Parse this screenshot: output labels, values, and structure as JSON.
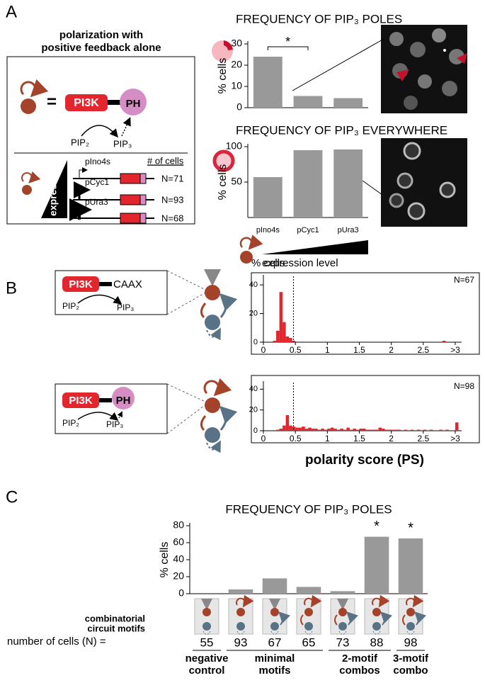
{
  "panel_labels": [
    "A",
    "B",
    "C"
  ],
  "diagram_a": {
    "title": [
      "polarization with",
      "positive feedback alone"
    ],
    "enzyme": "PI3K",
    "domain": "PH",
    "substrate": "PIP₂",
    "product": "PIP₃",
    "gradient": "expression",
    "count_header": "# of cells",
    "constructs": [
      {
        "promoter": "pIno4s",
        "n": "N=71"
      },
      {
        "promoter": "pCyc1",
        "n": "N=93"
      },
      {
        "promoter": "pUra3",
        "n": "N=68"
      }
    ]
  },
  "diagram_b": [
    {
      "enzyme": "PI3K",
      "tag": "CAAX",
      "substrate": "PIP₂",
      "product": "PIP₃"
    },
    {
      "enzyme": "PI3K",
      "tag": "PH",
      "substrate": "PIP₂",
      "product": "PIP₃"
    }
  ],
  "chart_data": [
    {
      "type": "bar",
      "title": "FREQUENCY OF PIP₃ POLES",
      "ylabel": "% cells",
      "categories": [
        null,
        null,
        null
      ],
      "values": [
        24,
        5.5,
        4.5
      ],
      "color": "#999999",
      "ylim": [
        0,
        30
      ],
      "yticks": [
        0,
        10,
        20,
        30
      ],
      "significance": "*"
    },
    {
      "type": "bar",
      "title": "FREQUENCY OF PIP₃ EVERYWHERE",
      "ylabel": "% cells",
      "xlabel": "expression level",
      "categories": [
        "pIno4s",
        "pCyc1",
        "pUra3"
      ],
      "values": [
        57,
        95,
        96
      ],
      "color": "#999999",
      "ylim": [
        0,
        100
      ],
      "yticks": [
        50,
        100
      ]
    },
    {
      "type": "histogram",
      "ylabel": "% cells",
      "annotation": "N=67",
      "threshold": 0.47,
      "color": "#e3262e",
      "bins": [
        0,
        0.05,
        0.1,
        0.15,
        0.2,
        0.25,
        0.3,
        0.35,
        0.4,
        0.45,
        0.5,
        0.55,
        0.6,
        0.65,
        0.7,
        0.75,
        0.8,
        0.85,
        0.9,
        0.95,
        1,
        1.05,
        1.1,
        1.15,
        1.2,
        1.25,
        1.3,
        1.35,
        1.4,
        1.45,
        1.5,
        1.55,
        1.6,
        1.65,
        1.7,
        1.75,
        1.8,
        1.85,
        1.9,
        1.95,
        2,
        2.05,
        2.1,
        2.15,
        2.2,
        2.25,
        2.3,
        2.35,
        2.4,
        2.45,
        2.5,
        2.55,
        2.6,
        2.65,
        2.7,
        2.75,
        2.8,
        2.85,
        2.9,
        2.95,
        3,
        3.05,
        3.1
      ],
      "values": [
        0,
        0,
        0,
        1,
        8,
        35,
        14,
        4,
        3,
        1,
        0,
        0,
        0,
        0,
        0,
        0,
        0,
        0,
        0,
        0,
        0,
        0,
        0,
        0,
        0,
        0,
        0,
        0,
        0,
        0,
        0,
        0,
        0,
        0,
        0,
        0,
        0,
        0,
        0,
        0,
        0,
        0,
        0,
        0,
        0,
        0,
        0,
        0,
        0,
        0,
        0,
        0,
        0,
        0,
        0,
        0,
        1,
        0,
        0,
        0,
        0,
        0
      ],
      "xlim": [
        0,
        3.1
      ],
      "xticks": [
        0,
        0.5,
        1,
        1.5,
        2,
        2.5,
        {
          "value": 3,
          "label": ">3"
        }
      ],
      "ylim": [
        0,
        45
      ],
      "yticks": [
        0,
        20,
        40
      ]
    },
    {
      "type": "histogram",
      "xlabel": "polarity score (PS)",
      "annotation": "N=98",
      "threshold": 0.47,
      "color": "#e3262e",
      "bins": [
        0,
        0.05,
        0.1,
        0.15,
        0.2,
        0.25,
        0.3,
        0.35,
        0.4,
        0.45,
        0.5,
        0.55,
        0.6,
        0.65,
        0.7,
        0.75,
        0.8,
        0.85,
        0.9,
        0.95,
        1,
        1.05,
        1.1,
        1.15,
        1.2,
        1.25,
        1.3,
        1.35,
        1.4,
        1.45,
        1.5,
        1.55,
        1.6,
        1.65,
        1.7,
        1.75,
        1.8,
        1.85,
        1.9,
        1.95,
        2,
        2.05,
        2.1,
        2.15,
        2.2,
        2.25,
        2.3,
        2.35,
        2.4,
        2.45,
        2.5,
        2.55,
        2.6,
        2.65,
        2.7,
        2.75,
        2.8,
        2.85,
        2.9,
        2.95,
        3,
        3.05,
        3.1
      ],
      "values": [
        0,
        0,
        0,
        0,
        1,
        2,
        5,
        15,
        5,
        4,
        3,
        3,
        4,
        2,
        3,
        2,
        2,
        1,
        2,
        1,
        2,
        3,
        2,
        1,
        2,
        1,
        3,
        1,
        2,
        1,
        2,
        2,
        1,
        1,
        1,
        1,
        3,
        2,
        1,
        1,
        1,
        1,
        1,
        0,
        1,
        0,
        1,
        0,
        1,
        0,
        1,
        0,
        1,
        0,
        0,
        1,
        0,
        1,
        0,
        0,
        8,
        0
      ],
      "xlim": [
        0,
        3.1
      ],
      "xticks": [
        0,
        0.5,
        1,
        1.5,
        2,
        2.5,
        {
          "value": 3,
          "label": ">3"
        }
      ],
      "ylim": [
        0,
        45
      ],
      "yticks": [
        0,
        20,
        40
      ]
    },
    {
      "type": "bar",
      "title": "FREQUENCY OF PIP₃ POLES",
      "ylabel": "% cells",
      "categories": [
        null,
        null,
        null,
        null,
        null,
        null,
        null
      ],
      "values": [
        0,
        5,
        18,
        8,
        3,
        67,
        65
      ],
      "color": "#999999",
      "ylim": [
        0,
        80
      ],
      "yticks": [
        0,
        20,
        40,
        60,
        80
      ],
      "annotations": [
        "*",
        "*"
      ],
      "motif_label": [
        "combinatorial",
        "circuit motifs"
      ],
      "row_label": "number of cells (N) =",
      "n_cells": [
        55,
        93,
        67,
        65,
        73,
        88,
        98
      ],
      "groups": [
        [
          "negative",
          "control"
        ],
        [
          "minimal",
          "motifs"
        ],
        [
          "2-motif",
          "combos"
        ],
        [
          "3-motif",
          "combo"
        ]
      ]
    }
  ]
}
